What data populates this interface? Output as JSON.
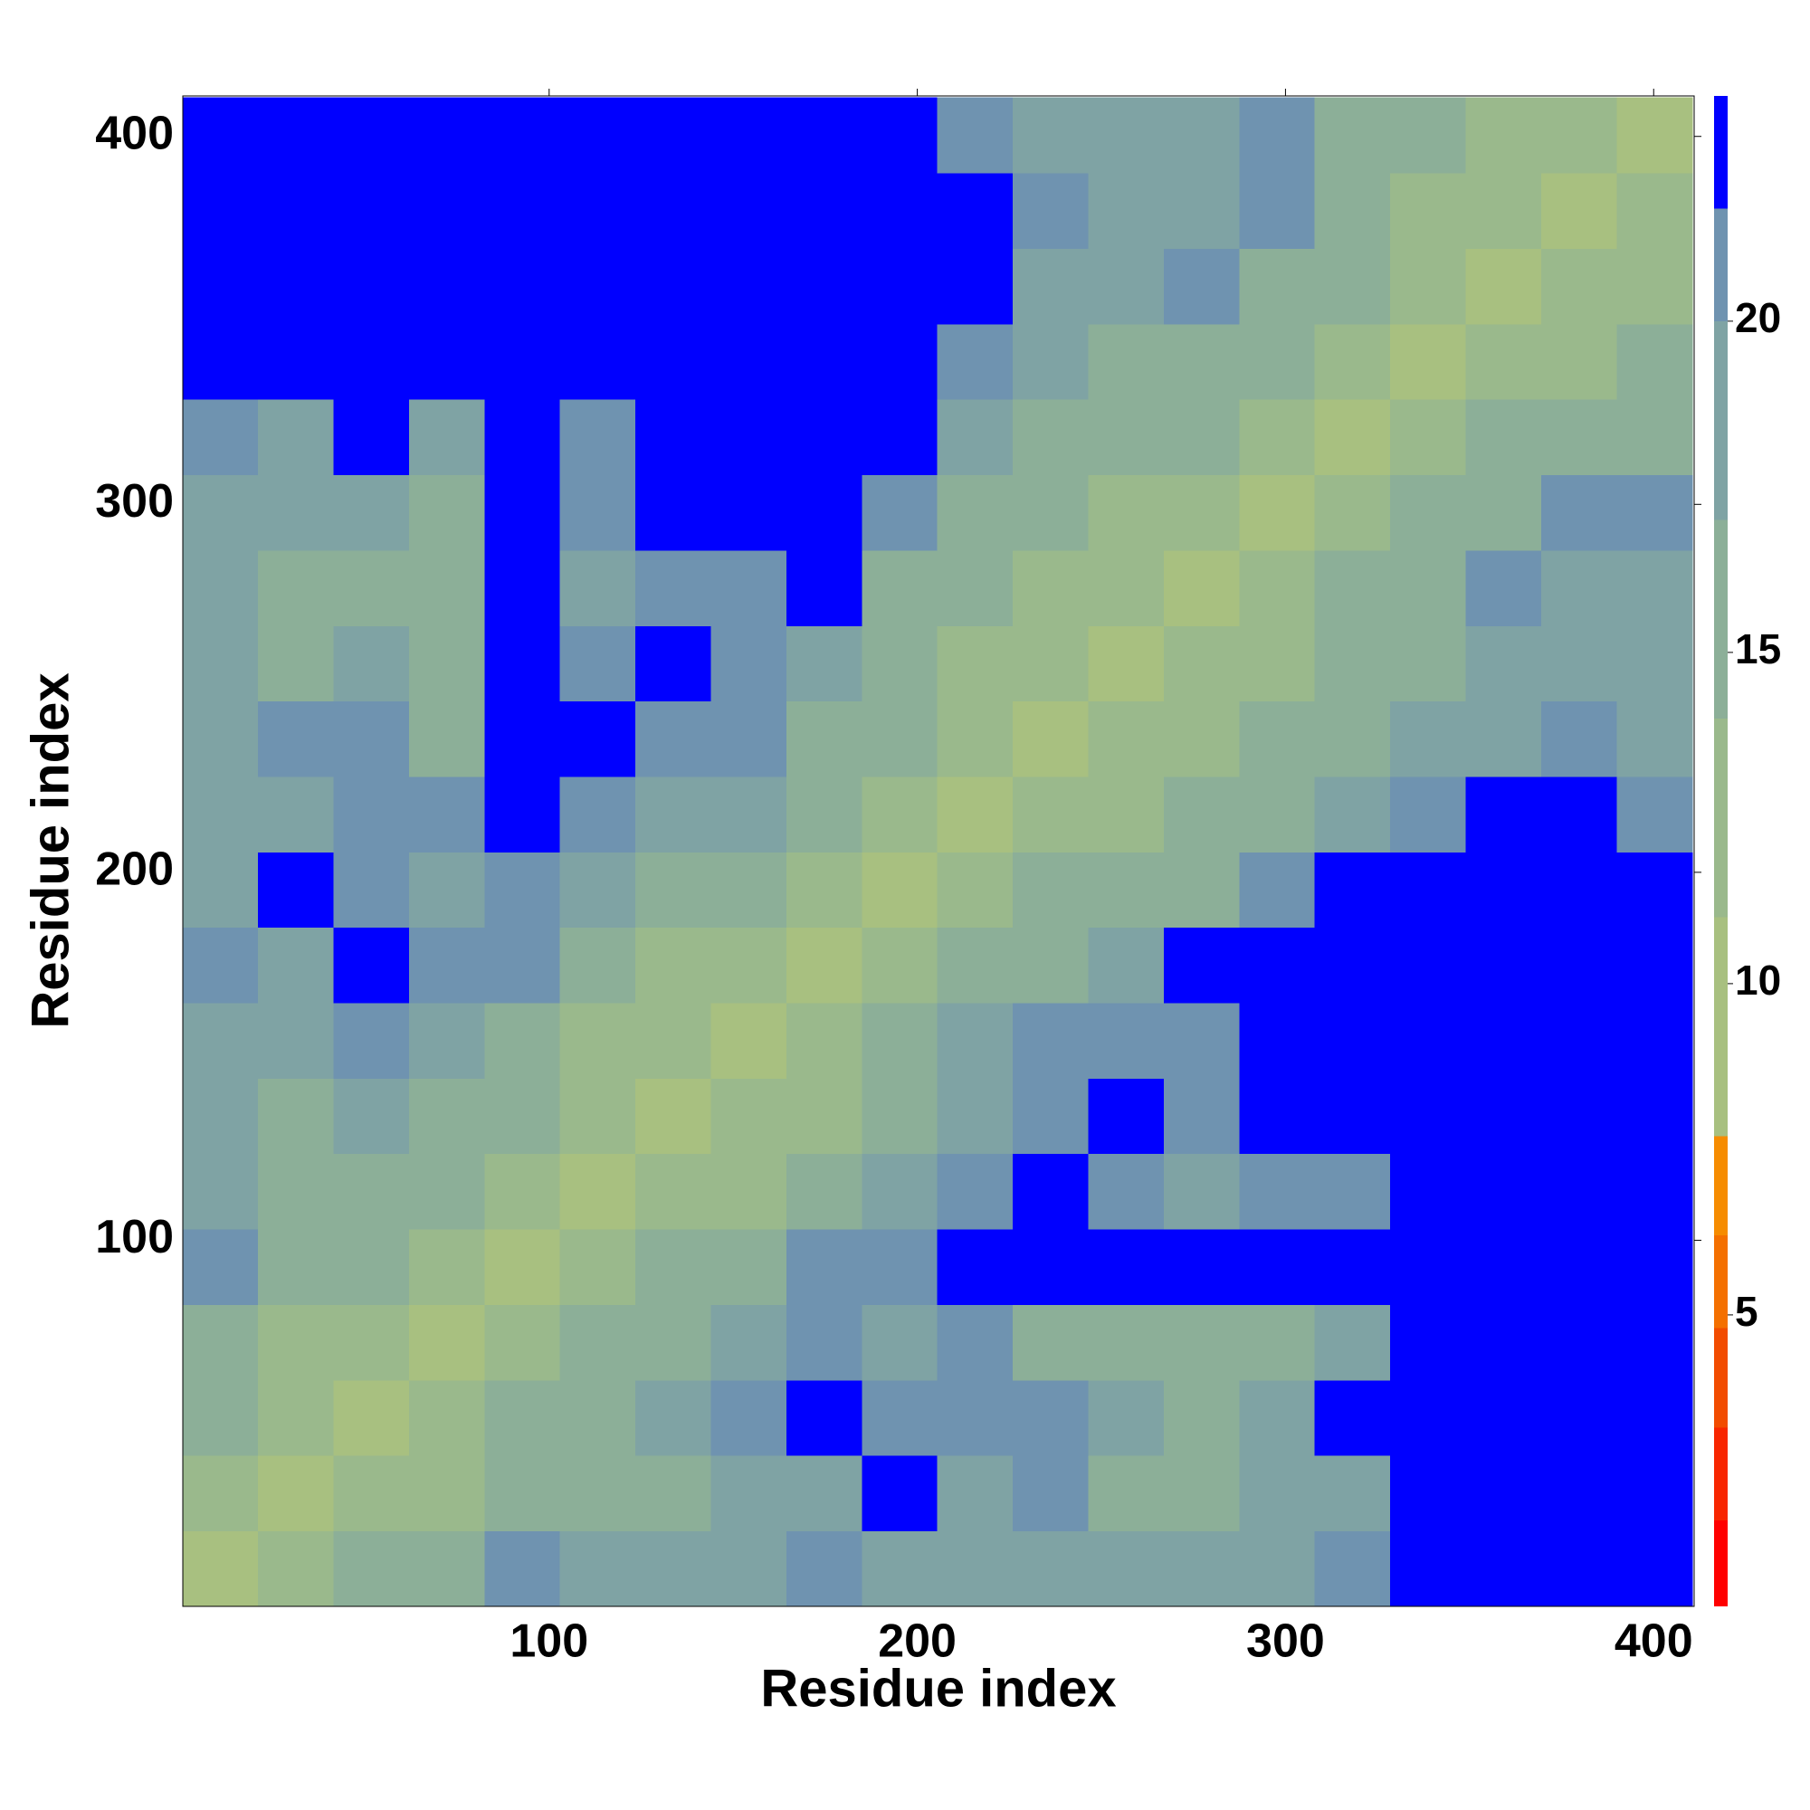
{
  "chart_data": {
    "type": "heatmap",
    "x_label": "Residue index",
    "y_label": "Residue index",
    "xlim": [
      0.5,
      411
    ],
    "ylim": [
      0.5,
      411
    ],
    "xticks": [
      100,
      200,
      300,
      400
    ],
    "yticks": [
      100,
      200,
      300,
      400
    ],
    "bins": [
      0.5,
      21,
      41.5,
      62,
      82.5,
      103,
      123.5,
      144,
      164.5,
      185,
      205.5,
      226,
      246.5,
      267,
      287.5,
      308,
      328.5,
      349,
      369.5,
      390,
      410.5
    ],
    "values": [
      [
        9,
        11,
        15,
        15,
        20,
        18,
        18,
        18,
        20,
        18,
        18,
        18,
        18,
        18,
        18,
        20,
        24,
        24,
        24,
        22
      ],
      [
        11,
        9,
        11,
        11,
        15,
        15,
        15,
        18,
        18,
        24,
        18,
        20,
        15,
        15,
        18,
        18,
        24,
        24,
        24,
        24
      ],
      [
        15,
        11,
        9,
        11,
        15,
        15,
        18,
        20,
        24,
        20,
        20,
        20,
        18,
        15,
        18,
        24,
        24,
        24,
        24,
        24
      ],
      [
        15,
        11,
        11,
        9,
        11,
        15,
        15,
        18,
        20,
        18,
        20,
        15,
        15,
        15,
        15,
        18,
        24,
        22,
        24,
        22
      ],
      [
        20,
        15,
        15,
        11,
        9,
        11,
        15,
        15,
        20,
        20,
        22,
        24,
        24,
        22,
        24,
        24,
        24,
        24,
        24,
        24
      ],
      [
        18,
        15,
        15,
        15,
        11,
        9,
        11,
        11,
        15,
        18,
        20,
        22,
        20,
        18,
        20,
        20,
        24,
        24,
        24,
        24
      ],
      [
        18,
        15,
        18,
        15,
        15,
        11,
        9,
        11,
        11,
        15,
        18,
        20,
        22,
        20,
        24,
        24,
        24,
        24,
        24,
        24
      ],
      [
        18,
        18,
        20,
        18,
        15,
        11,
        11,
        9,
        11,
        15,
        18,
        20,
        20,
        20,
        22,
        24,
        24,
        24,
        24,
        24
      ],
      [
        20,
        18,
        24,
        20,
        20,
        15,
        11,
        11,
        9,
        11,
        15,
        15,
        18,
        22,
        24,
        24,
        24,
        24,
        24,
        24
      ],
      [
        18,
        24,
        20,
        18,
        20,
        18,
        15,
        15,
        11,
        9,
        11,
        15,
        15,
        15,
        20,
        22,
        24,
        24,
        24,
        24
      ],
      [
        18,
        18,
        20,
        20,
        22,
        20,
        18,
        18,
        15,
        11,
        9,
        11,
        11,
        15,
        15,
        18,
        20,
        24,
        24,
        20
      ],
      [
        18,
        20,
        20,
        15,
        24,
        22,
        20,
        20,
        15,
        15,
        11,
        9,
        11,
        11,
        15,
        15,
        18,
        18,
        20,
        18
      ],
      [
        18,
        15,
        18,
        15,
        24,
        20,
        22,
        20,
        18,
        15,
        11,
        11,
        9,
        11,
        11,
        15,
        15,
        18,
        18,
        18
      ],
      [
        18,
        15,
        15,
        15,
        22,
        18,
        20,
        20,
        22,
        15,
        15,
        11,
        11,
        9,
        11,
        15,
        15,
        20,
        18,
        18
      ],
      [
        18,
        18,
        18,
        15,
        24,
        20,
        24,
        22,
        24,
        20,
        15,
        15,
        11,
        11,
        9,
        11,
        15,
        15,
        20,
        20
      ],
      [
        20,
        18,
        24,
        18,
        24,
        20,
        24,
        24,
        24,
        22,
        18,
        15,
        15,
        15,
        11,
        9,
        11,
        15,
        15,
        15
      ],
      [
        24,
        24,
        24,
        24,
        24,
        24,
        24,
        24,
        24,
        24,
        20,
        18,
        15,
        15,
        15,
        11,
        9,
        11,
        11,
        15
      ],
      [
        24,
        24,
        24,
        22,
        24,
        24,
        24,
        24,
        24,
        24,
        24,
        18,
        18,
        20,
        15,
        15,
        11,
        9,
        11,
        11
      ],
      [
        24,
        24,
        24,
        24,
        24,
        24,
        24,
        24,
        24,
        24,
        24,
        20,
        18,
        18,
        20,
        15,
        11,
        11,
        9,
        11
      ],
      [
        22,
        24,
        24,
        22,
        24,
        24,
        24,
        24,
        24,
        24,
        20,
        18,
        18,
        18,
        20,
        15,
        15,
        11,
        11,
        9
      ]
    ],
    "clim": [
      0.6,
      23.4
    ],
    "colorbar_ticks": [
      5,
      10,
      15,
      20
    ],
    "colorscale": [
      [
        0.6,
        "#ff0000"
      ],
      [
        1.9,
        "#f82600"
      ],
      [
        3.3,
        "#f24c00"
      ],
      [
        4.8,
        "#f47000"
      ],
      [
        6.2,
        "#f68c00"
      ],
      [
        7.7,
        "#a8c080"
      ],
      [
        11,
        "#9ab98c"
      ],
      [
        14,
        "#8caf98"
      ],
      [
        17,
        "#7fa3a4"
      ],
      [
        20,
        "#6f93b0"
      ],
      [
        21.7,
        "#0000ff"
      ],
      [
        23.4,
        "#0000ff"
      ]
    ]
  }
}
